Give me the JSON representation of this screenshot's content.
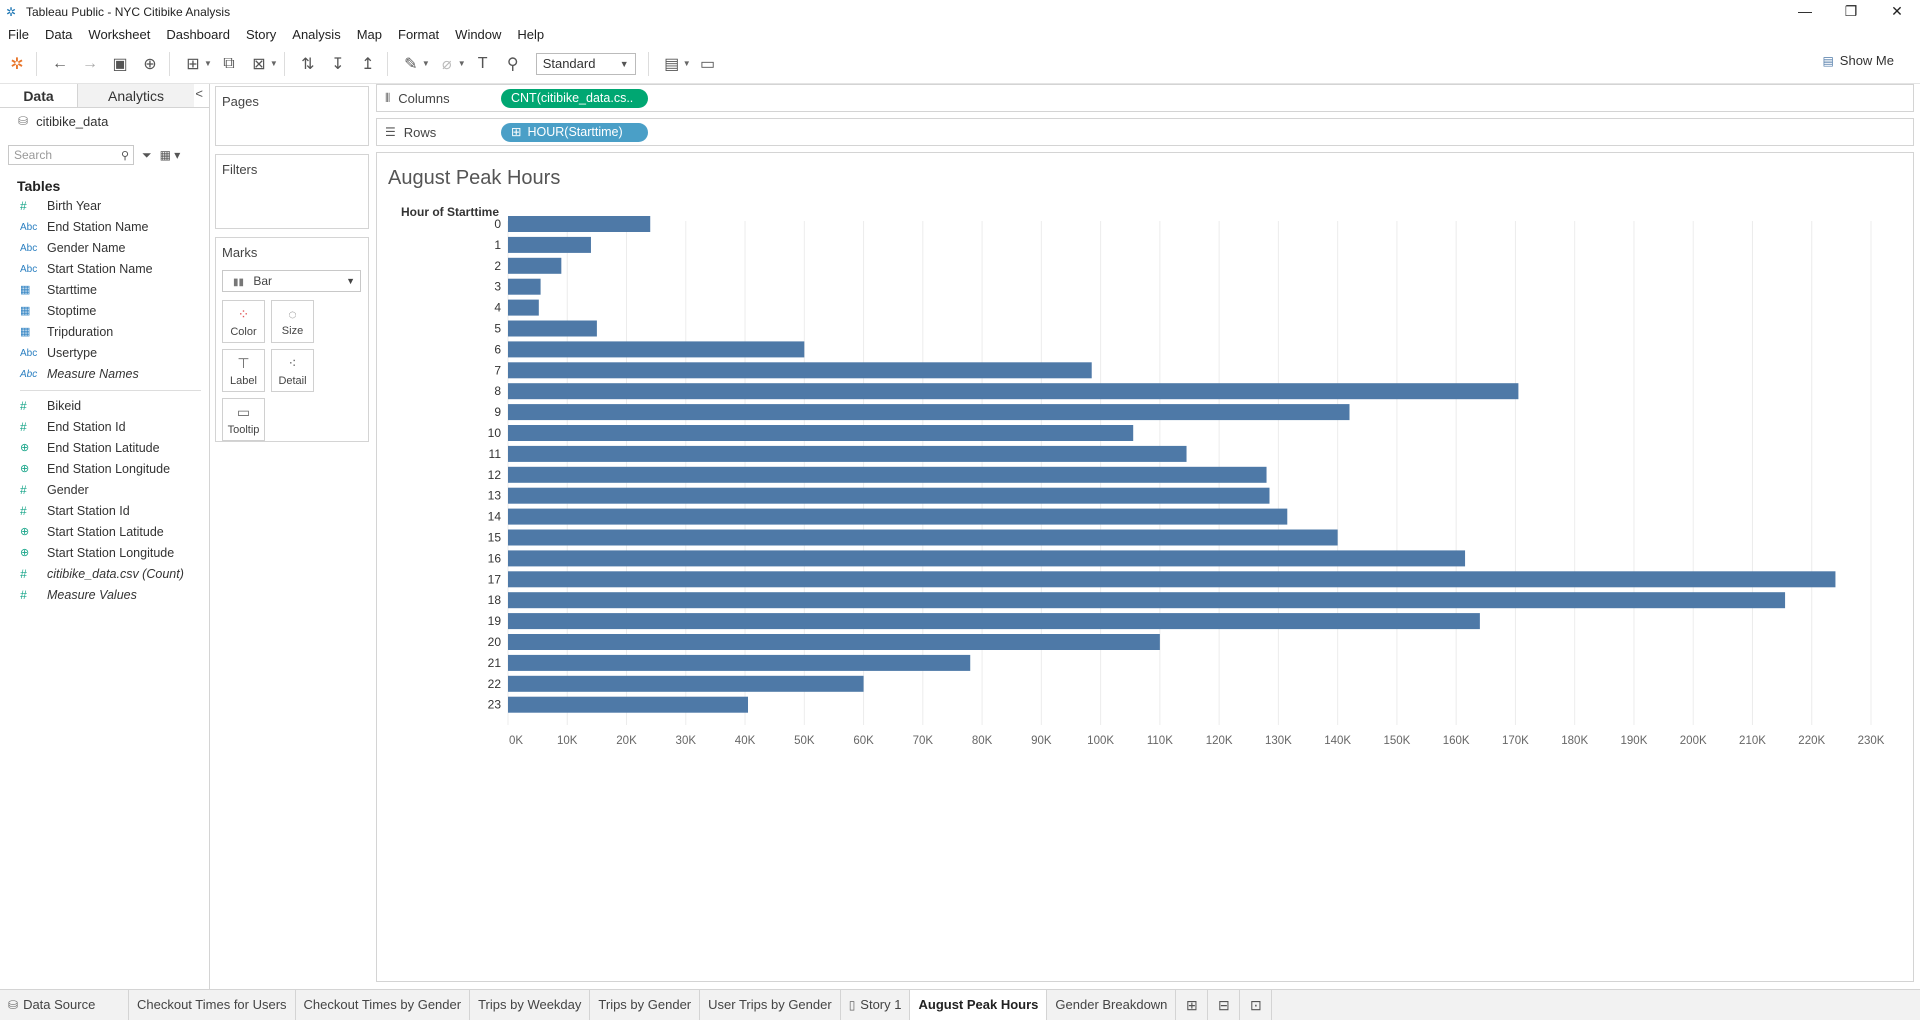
{
  "window": {
    "title": "Tableau Public - NYC Citibike Analysis",
    "controls": [
      "—",
      "❐",
      "✕"
    ]
  },
  "menu": [
    "File",
    "Data",
    "Worksheet",
    "Dashboard",
    "Story",
    "Analysis",
    "Map",
    "Format",
    "Window",
    "Help"
  ],
  "toolbar": {
    "fit_select": "Standard",
    "show_me": "Show Me"
  },
  "data_pane": {
    "tabs": {
      "data": "Data",
      "analytics": "Analytics"
    },
    "datasource": "citibike_data",
    "search_placeholder": "Search",
    "tables_heading": "Tables",
    "dimensions": [
      {
        "type": "num",
        "name": "Birth Year"
      },
      {
        "type": "abc",
        "name": "End Station Name"
      },
      {
        "type": "abc",
        "name": "Gender Name"
      },
      {
        "type": "abc",
        "name": "Start Station Name"
      },
      {
        "type": "date",
        "name": "Starttime"
      },
      {
        "type": "date",
        "name": "Stoptime"
      },
      {
        "type": "date",
        "name": "Tripduration"
      },
      {
        "type": "abc",
        "name": "Usertype"
      },
      {
        "type": "abc",
        "name": "Measure Names"
      }
    ],
    "measures": [
      {
        "type": "num",
        "name": "Bikeid"
      },
      {
        "type": "num",
        "name": "End Station Id"
      },
      {
        "type": "geo",
        "name": "End Station Latitude"
      },
      {
        "type": "geo",
        "name": "End Station Longitude"
      },
      {
        "type": "num",
        "name": "Gender"
      },
      {
        "type": "num",
        "name": "Start Station Id"
      },
      {
        "type": "geo",
        "name": "Start Station Latitude"
      },
      {
        "type": "geo",
        "name": "Start Station Longitude"
      },
      {
        "type": "num",
        "name": "citibike_data.csv (Count)"
      },
      {
        "type": "num",
        "name": "Measure Values"
      }
    ]
  },
  "cards": {
    "pages": "Pages",
    "filters": "Filters",
    "marks": "Marks",
    "mark_type": "Bar",
    "buttons": {
      "color": "Color",
      "size": "Size",
      "label": "Label",
      "detail": "Detail",
      "tooltip": "Tooltip"
    }
  },
  "shelves": {
    "columns_label": "Columns",
    "columns_pill": "CNT(citibike_data.cs..",
    "rows_label": "Rows",
    "rows_pill": "HOUR(Starttime)"
  },
  "view": {
    "title": "August Peak Hours",
    "row_header": "Hour of Starttime"
  },
  "chart_data": {
    "type": "bar",
    "orientation": "horizontal",
    "title": "August Peak Hours",
    "ylabel": "Hour of Starttime",
    "xlabel": "",
    "categories": [
      "0",
      "1",
      "2",
      "3",
      "4",
      "5",
      "6",
      "7",
      "8",
      "9",
      "10",
      "11",
      "12",
      "13",
      "14",
      "15",
      "16",
      "17",
      "18",
      "19",
      "20",
      "21",
      "22",
      "23"
    ],
    "values": [
      24000,
      14000,
      9000,
      5500,
      5200,
      15000,
      50000,
      98500,
      170500,
      142000,
      105500,
      114500,
      128000,
      128500,
      131500,
      140000,
      161500,
      224000,
      215500,
      164000,
      110000,
      78000,
      60000,
      40500
    ],
    "xlim": [
      0,
      230000
    ],
    "xticks": [
      "0K",
      "10K",
      "20K",
      "30K",
      "40K",
      "50K",
      "60K",
      "70K",
      "80K",
      "90K",
      "100K",
      "110K",
      "120K",
      "130K",
      "140K",
      "150K",
      "160K",
      "170K",
      "180K",
      "190K",
      "200K",
      "210K",
      "220K",
      "230K"
    ],
    "bar_color": "#4e79a7",
    "grid": "vertical"
  },
  "sheet_tabs": [
    {
      "label": "Data Source",
      "icon": "datasource-icon",
      "active": false
    },
    {
      "label": "Checkout Times for Users",
      "active": false
    },
    {
      "label": "Checkout Times by Gender",
      "active": false
    },
    {
      "label": "Trips by Weekday",
      "active": false
    },
    {
      "label": "Trips by Gender",
      "active": false
    },
    {
      "label": "User Trips by Gender",
      "active": false
    },
    {
      "label": "Story 1",
      "icon": "story-icon",
      "active": false
    },
    {
      "label": "August Peak Hours",
      "active": true
    },
    {
      "label": "Gender Breakdown",
      "active": false
    }
  ]
}
